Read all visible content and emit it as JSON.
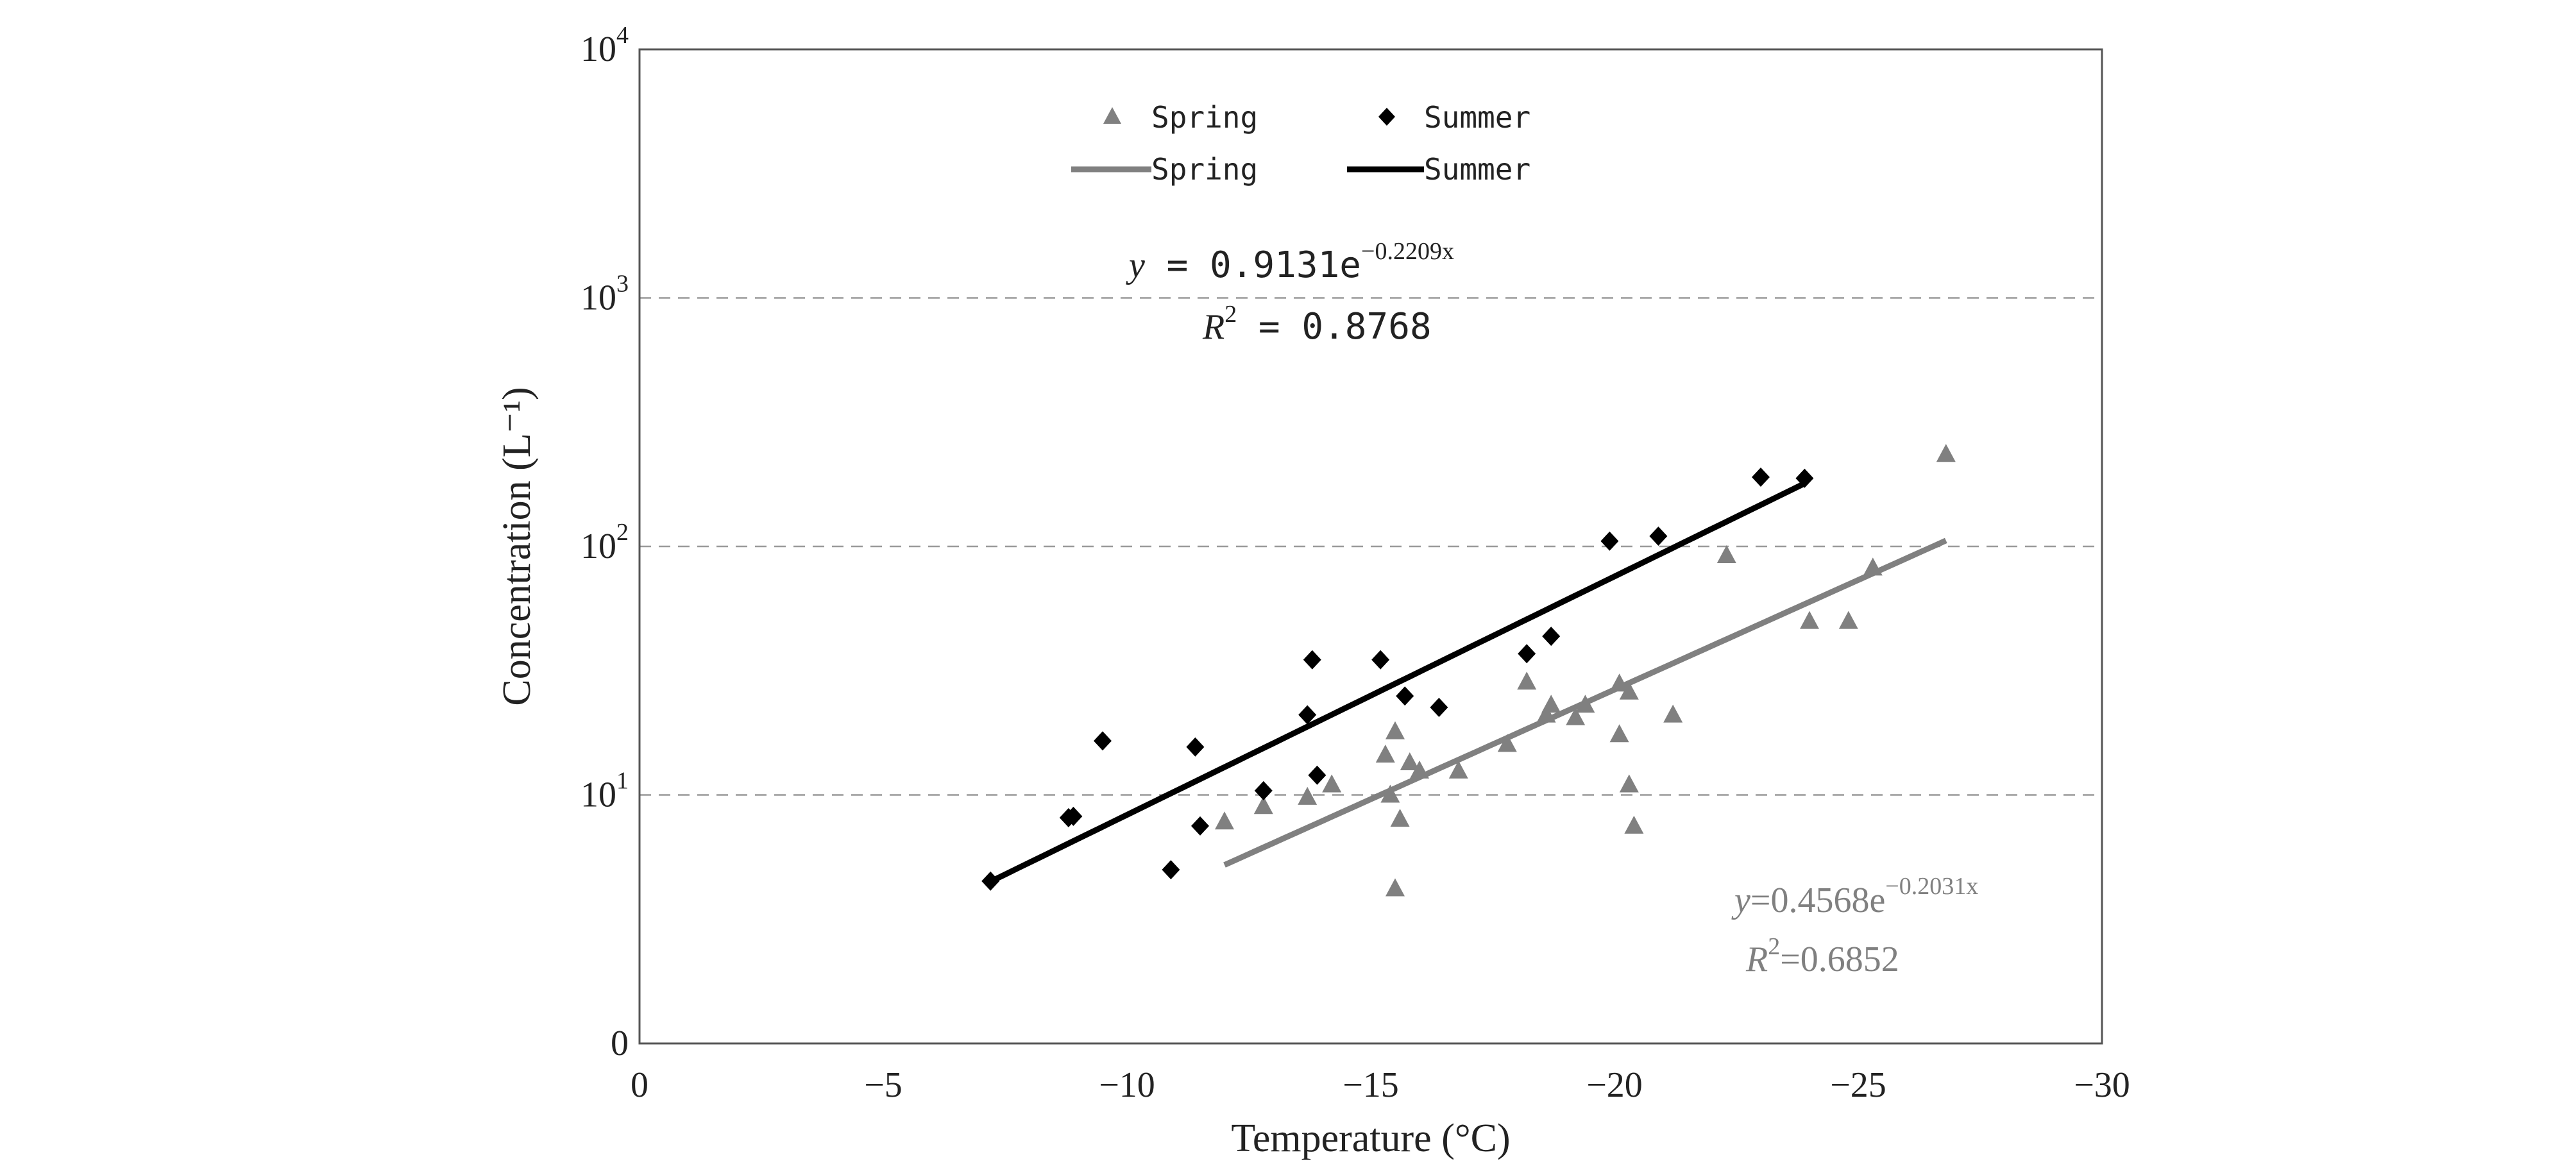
{
  "chart_data": {
    "type": "scatter",
    "xlabel": "Temperature (°C)",
    "ylabel": "Concentration (L⁻¹)",
    "x_ticks": [
      "0",
      "−5",
      "−10",
      "−15",
      "−20",
      "−25",
      "−30"
    ],
    "x_tick_values": [
      0,
      -5,
      -10,
      -15,
      -20,
      -25,
      -30
    ],
    "y_ticks": [
      {
        "value": 1,
        "base": "0",
        "exp": ""
      },
      {
        "value": 10,
        "base": "10",
        "exp": "1"
      },
      {
        "value": 100,
        "base": "10",
        "exp": "2"
      },
      {
        "value": 1000,
        "base": "10",
        "exp": "3"
      },
      {
        "value": 10000,
        "base": "10",
        "exp": "4"
      }
    ],
    "xlim": [
      0,
      -30
    ],
    "ylim": [
      1,
      10000
    ],
    "y_scale": "log",
    "grid": "horizontal dashed at 10, 100, 1000",
    "legend_position": "top-center",
    "legend": [
      {
        "label": "Spring",
        "kind": "marker-triangle"
      },
      {
        "label": "Summer",
        "kind": "marker-diamond"
      },
      {
        "label": "Spring",
        "kind": "line-gray"
      },
      {
        "label": "Summer",
        "kind": "line-black"
      }
    ],
    "colors": {
      "spring": "#808080",
      "summer": "#000000"
    },
    "series": [
      {
        "name": "Spring",
        "marker": "triangle",
        "points": [
          [
            -12.0,
            7.8
          ],
          [
            -12.8,
            9.0
          ],
          [
            -13.7,
            9.8
          ],
          [
            -14.2,
            11.0
          ],
          [
            -15.3,
            14.5
          ],
          [
            -15.5,
            18.0
          ],
          [
            -15.4,
            10.0
          ],
          [
            -15.6,
            8.0
          ],
          [
            -15.5,
            4.2
          ],
          [
            -15.8,
            13.5
          ],
          [
            -16.0,
            12.5
          ],
          [
            -16.8,
            12.5
          ],
          [
            -17.8,
            16.0
          ],
          [
            -18.2,
            28.5
          ],
          [
            -18.6,
            21.0
          ],
          [
            -18.7,
            23.0
          ],
          [
            -19.2,
            20.5
          ],
          [
            -19.4,
            23.0
          ],
          [
            -20.1,
            17.5
          ],
          [
            -20.1,
            28.0
          ],
          [
            -20.3,
            26.0
          ],
          [
            -20.3,
            11.0
          ],
          [
            -20.4,
            7.5
          ],
          [
            -21.2,
            21.0
          ],
          [
            -22.3,
            92.0
          ],
          [
            -24.0,
            50.0
          ],
          [
            -24.8,
            50.0
          ],
          [
            -25.3,
            82.0
          ],
          [
            -26.8,
            235.0
          ]
        ]
      },
      {
        "name": "Summer",
        "marker": "diamond",
        "points": [
          [
            -7.2,
            4.5
          ],
          [
            -8.8,
            8.1
          ],
          [
            -8.9,
            8.2
          ],
          [
            -9.5,
            16.5
          ],
          [
            -10.9,
            5.0
          ],
          [
            -11.4,
            15.6
          ],
          [
            -11.5,
            7.5
          ],
          [
            -12.8,
            10.4
          ],
          [
            -13.7,
            21.0
          ],
          [
            -13.8,
            35.0
          ],
          [
            -13.9,
            12.0
          ],
          [
            -15.2,
            35.0
          ],
          [
            -15.7,
            25.0
          ],
          [
            -16.4,
            22.5
          ],
          [
            -18.2,
            37.0
          ],
          [
            -18.7,
            43.5
          ],
          [
            -19.9,
            105.0
          ],
          [
            -20.9,
            110.0
          ],
          [
            -23.0,
            190.0
          ],
          [
            -23.9,
            188.0
          ]
        ]
      }
    ],
    "trendlines": [
      {
        "name": "Spring",
        "a": 0.4568,
        "b": -0.2031,
        "x_from": -12.0,
        "x_to": -26.8
      },
      {
        "name": "Summer",
        "a": 0.9131,
        "b": -0.2209,
        "x_from": -7.2,
        "x_to": -23.9
      }
    ],
    "annotations": {
      "summer": {
        "eq_prefix": "y",
        "eq_main": " = 0.9131e",
        "eq_exp": "−0.2209x",
        "r2_prefix": "R",
        "r2_sup": "2",
        "r2_value": " = 0.8768"
      },
      "spring": {
        "eq_prefix": "y",
        "eq_main": "=0.4568e",
        "eq_exp": "−0.2031x",
        "r2_prefix": "R",
        "r2_sup": "2",
        "r2_value": "=0.6852"
      }
    }
  }
}
